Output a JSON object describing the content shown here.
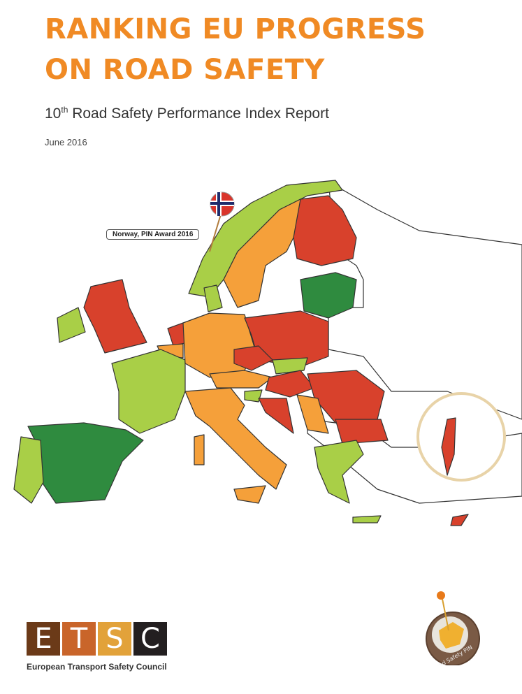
{
  "title_line1": "RANKING EU PROGRESS",
  "title_line2": "ON ROAD SAFETY",
  "subtitle": {
    "ordinal": "10",
    "suffix": "th",
    "rest": " Road Safety Performance Index Report"
  },
  "date": "June 2016",
  "map": {
    "award_label": "Norway, PIN Award 2016",
    "colors": {
      "dark_green": "#2f8b3f",
      "light_green": "#a9cf47",
      "orange": "#f5a03a",
      "red": "#d8412c",
      "outline": "#333333"
    }
  },
  "etsc": {
    "letters": [
      "E",
      "T",
      "S",
      "C"
    ],
    "colors": [
      "#6b3a18",
      "#c9652a",
      "#e2a23a",
      "#231f20"
    ],
    "name": "European Transport Safety Council"
  },
  "pin_logo": {
    "text": "Road Safety PIN"
  }
}
